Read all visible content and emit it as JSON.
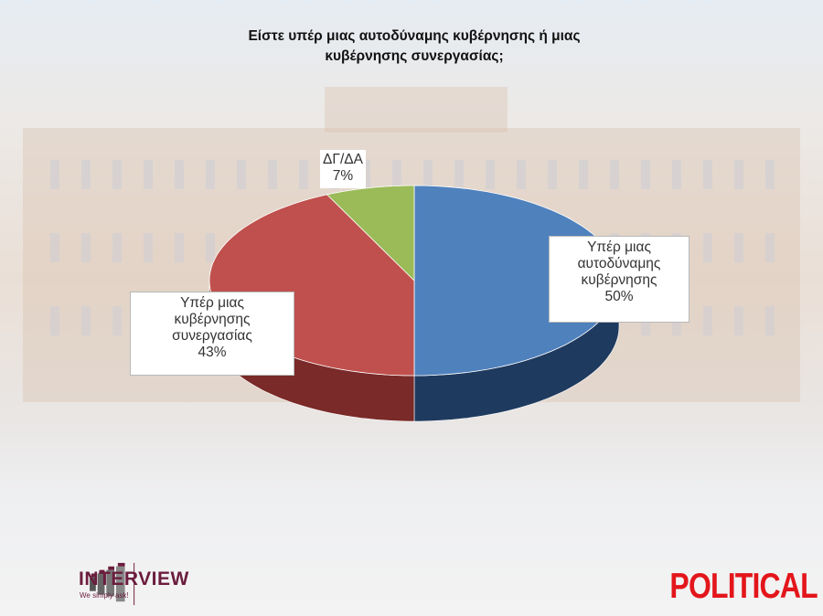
{
  "chart_data": {
    "type": "pie",
    "style": "3d",
    "title": "Είστε υπέρ μιας αυτοδύναμης κυβέρνησης ή μιας κυβέρνησης συνεργασίας;",
    "title_lines": [
      "Είστε υπέρ μιας αυτοδύναμης κυβέρνησης ή μιας",
      "κυβέρνησης συνεργασίας;"
    ],
    "slices": [
      {
        "label_lines": [
          "Υπέρ μιας",
          "αυτοδύναμης",
          "κυβέρνησης"
        ],
        "label": "Υπέρ μιας αυτοδύναμης κυβέρνησης",
        "value": 50,
        "value_label": "50%",
        "color": "#4f81bd",
        "side_color": "#1f3a5f"
      },
      {
        "label_lines": [
          "Υπέρ μιας",
          "κυβέρνησης",
          "συνεργασίας"
        ],
        "label": "Υπέρ μιας κυβέρνησης συνεργασίας",
        "value": 43,
        "value_label": "43%",
        "color": "#c0504d",
        "side_color": "#7a2a28"
      },
      {
        "label_lines": [
          "ΔΓ/ΔΑ"
        ],
        "label": "ΔΓ/ΔΑ",
        "value": 7,
        "value_label": "7%",
        "color": "#9bbb59",
        "side_color": "#5e7a2c"
      }
    ],
    "start": "top",
    "direction": "clockwise"
  },
  "logos": {
    "left": {
      "name": "INTERVIEW",
      "tagline": "We simply ask!",
      "color": "#6b1d3d"
    },
    "right": {
      "name": "POLITICAL",
      "color": "#e3161b"
    }
  }
}
